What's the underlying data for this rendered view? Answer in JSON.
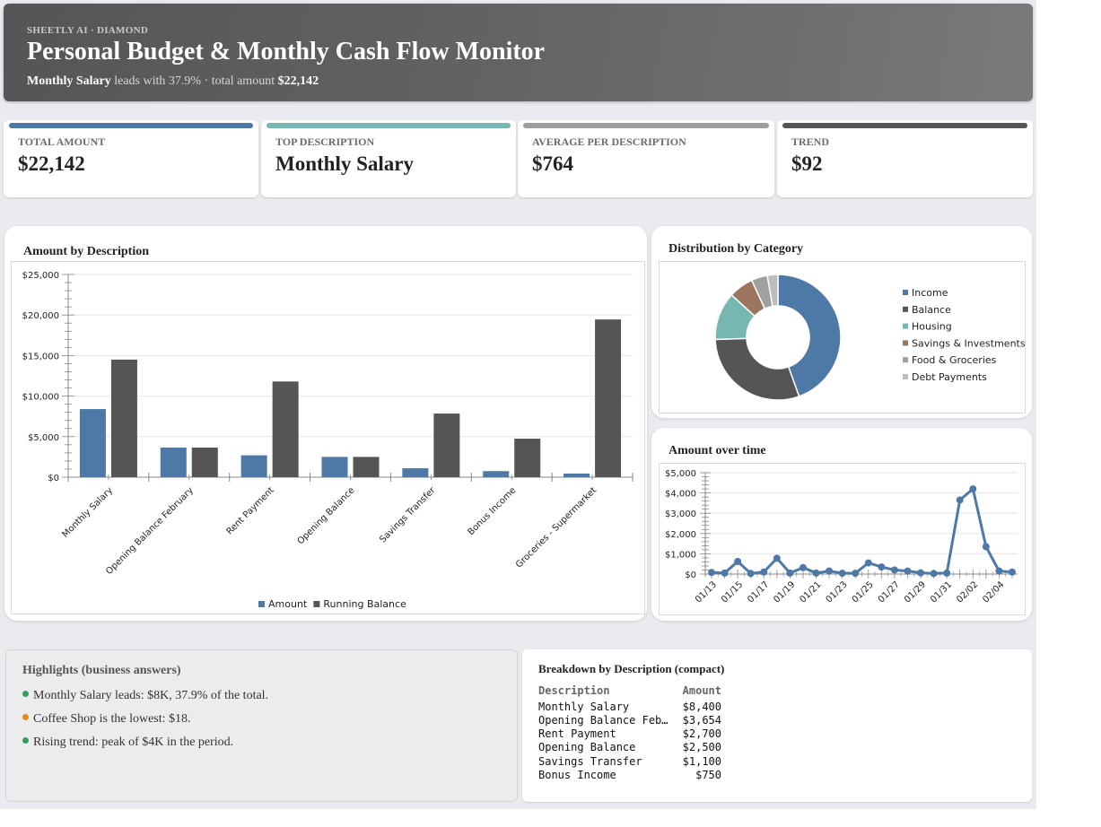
{
  "header": {
    "brand": "SHEETLY AI · DIAMOND",
    "title": "Personal Budget & Monthly Cash Flow Monitor",
    "sub_lead": "Monthly Salary",
    "sub_mid": " leads with 37.9% · total amount ",
    "sub_total": "$22,142"
  },
  "kpis": [
    {
      "label": "TOTAL AMOUNT",
      "value": "$22,142",
      "color": "#4e79a7"
    },
    {
      "label": "TOP DESCRIPTION",
      "value": "Monthly Salary",
      "color": "#76b7b2"
    },
    {
      "label": "AVERAGE PER DESCRIPTION",
      "value": "$764",
      "color": "#9e9e9e"
    },
    {
      "label": "TREND",
      "value": "$92",
      "color": "#555555"
    }
  ],
  "chart_titles": {
    "bar": "Amount by Description",
    "donut": "Distribution by Category",
    "line": "Amount over time"
  },
  "chart_data": [
    {
      "type": "bar",
      "title": "Amount by Description",
      "categories": [
        "Monthly Salary",
        "Opening Balance February",
        "Rent Payment",
        "Opening Balance",
        "Savings Transfer",
        "Bonus Income",
        "Groceries - Supermarket"
      ],
      "series": [
        {
          "name": "Amount",
          "color": "#4e79a7",
          "values": [
            8400,
            3654,
            2700,
            2500,
            1100,
            750,
            450
          ]
        },
        {
          "name": "Running Balance",
          "color": "#555555",
          "values": [
            14500,
            3654,
            11800,
            2500,
            7850,
            4750,
            19450
          ]
        }
      ],
      "ylim": [
        0,
        25000
      ],
      "yticks": [
        "$0",
        "$5,000",
        "$10,000",
        "$15,000",
        "$20,000",
        "$25,000"
      ],
      "legend": "bottom",
      "grid": true
    },
    {
      "type": "pie",
      "title": "Distribution by Category",
      "categories": [
        "Income",
        "Balance",
        "Housing",
        "Savings & Investments",
        "Food & Groceries",
        "Debt Payments"
      ],
      "values": [
        44.1,
        29.6,
        12.2,
        6.3,
        4.1,
        2.7
      ],
      "colors": [
        "#4e79a7",
        "#555555",
        "#76b7b2",
        "#9c755f",
        "#a0a0a0",
        "#bdbdbd"
      ],
      "legend": "right",
      "donut": true
    },
    {
      "type": "line",
      "title": "Amount over time",
      "x": [
        "01/13",
        "01/14",
        "01/15",
        "01/16",
        "01/17",
        "01/18",
        "01/19",
        "01/20",
        "01/21",
        "01/22",
        "01/23",
        "01/24",
        "01/25",
        "01/26",
        "01/27",
        "01/28",
        "01/29",
        "01/30",
        "01/31",
        "02/01",
        "02/02",
        "02/03",
        "02/04",
        "02/05"
      ],
      "xticks": [
        "01/13",
        "01/15",
        "01/17",
        "01/19",
        "01/21",
        "01/23",
        "01/25",
        "01/27",
        "01/29",
        "01/31",
        "02/02",
        "02/04"
      ],
      "series": [
        {
          "color": "#4e79a7",
          "values": [
            80,
            50,
            620,
            30,
            100,
            780,
            50,
            320,
            50,
            150,
            40,
            40,
            550,
            350,
            200,
            150,
            60,
            30,
            50,
            3650,
            4200,
            1350,
            150,
            100
          ]
        }
      ],
      "ylim": [
        0,
        5000
      ],
      "yticks": [
        "$0",
        "$1,000",
        "$2,000",
        "$3,000",
        "$4,000",
        "$5,000"
      ],
      "grid": true
    }
  ],
  "highlights": {
    "title": "Highlights (business answers)",
    "items": [
      {
        "text": "Monthly Salary leads: $8K, 37.9% of the total.",
        "color": "#2e9e5b"
      },
      {
        "text": "Coffee Shop is the lowest: $18.",
        "color": "#e08a1e"
      },
      {
        "text": "Rising trend: peak of $4K in the period.",
        "color": "#2e9e5b"
      }
    ]
  },
  "breakdown": {
    "title": "Breakdown by Description (compact)",
    "headers": [
      "Description",
      "Amount"
    ],
    "rows": [
      [
        "Monthly Salary",
        "$8,400"
      ],
      [
        "Opening Balance Feb…",
        "$3,654"
      ],
      [
        "Rent Payment",
        "$2,700"
      ],
      [
        "Opening Balance",
        "$2,500"
      ],
      [
        "Savings Transfer",
        "$1,100"
      ],
      [
        "Bonus Income",
        "$750"
      ]
    ]
  }
}
